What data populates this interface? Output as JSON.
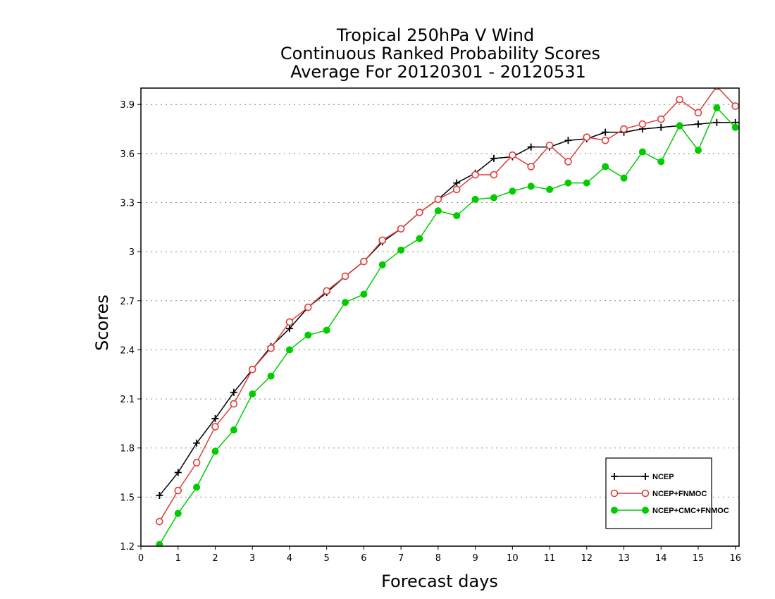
{
  "chart_data": {
    "type": "line",
    "title_lines": [
      "Tropical 250hPa V Wind",
      "Continuous Ranked Probability Scores",
      "Average For 20120301 - 20120531"
    ],
    "xlabel": "Forecast days",
    "ylabel": "Scores",
    "xlim": [
      0,
      16.1
    ],
    "ylim": [
      1.2,
      4.0
    ],
    "xticks": [
      0,
      1,
      2,
      3,
      4,
      5,
      6,
      7,
      8,
      9,
      10,
      11,
      12,
      13,
      14,
      15,
      16
    ],
    "yticks": [
      1.2,
      1.5,
      1.8,
      2.1,
      2.4,
      2.7,
      3.0,
      3.3,
      3.6,
      3.9
    ],
    "ytick_labels": [
      "1.2",
      "1.5",
      "1.8",
      "2.1",
      "2.4",
      "2.7",
      "3",
      "3.3",
      "3.6",
      "3.9"
    ],
    "grid": "horizontal-dotted",
    "legend_position": "bottom-right",
    "x": [
      0.5,
      1,
      1.5,
      2,
      2.5,
      3,
      3.5,
      4,
      4.5,
      5,
      5.5,
      6,
      6.5,
      7,
      7.5,
      8,
      8.5,
      9,
      9.5,
      10,
      10.5,
      11,
      11.5,
      12,
      12.5,
      13,
      13.5,
      14,
      14.5,
      15,
      15.5,
      16
    ],
    "series": [
      {
        "name": "NCEP",
        "color": "#000000",
        "marker": "plus",
        "values": [
          1.51,
          1.65,
          1.83,
          1.98,
          2.14,
          2.28,
          2.42,
          2.53,
          2.66,
          2.75,
          2.85,
          2.94,
          3.06,
          3.14,
          3.24,
          3.32,
          3.42,
          3.48,
          3.57,
          3.58,
          3.64,
          3.64,
          3.68,
          3.69,
          3.73,
          3.73,
          3.75,
          3.76,
          3.77,
          3.78,
          3.79,
          3.79
        ]
      },
      {
        "name": "NCEP+FNMOC",
        "color": "#e03c3c",
        "marker": "open-circle",
        "values": [
          1.35,
          1.54,
          1.71,
          1.93,
          2.07,
          2.28,
          2.41,
          2.57,
          2.66,
          2.76,
          2.85,
          2.94,
          3.07,
          3.14,
          3.24,
          3.32,
          3.38,
          3.47,
          3.47,
          3.59,
          3.52,
          3.65,
          3.55,
          3.7,
          3.68,
          3.75,
          3.78,
          3.81,
          3.93,
          3.85,
          4.01,
          3.89
        ]
      },
      {
        "name": "NCEP+CMC+FNMOC",
        "color": "#00cc00",
        "marker": "filled-circle",
        "values": [
          1.21,
          1.4,
          1.56,
          1.78,
          1.91,
          2.13,
          2.24,
          2.4,
          2.49,
          2.52,
          2.69,
          2.74,
          2.92,
          3.01,
          3.08,
          3.25,
          3.22,
          3.32,
          3.33,
          3.37,
          3.4,
          3.38,
          3.42,
          3.42,
          3.52,
          3.45,
          3.61,
          3.55,
          3.77,
          3.62,
          3.88,
          3.76
        ]
      }
    ]
  }
}
